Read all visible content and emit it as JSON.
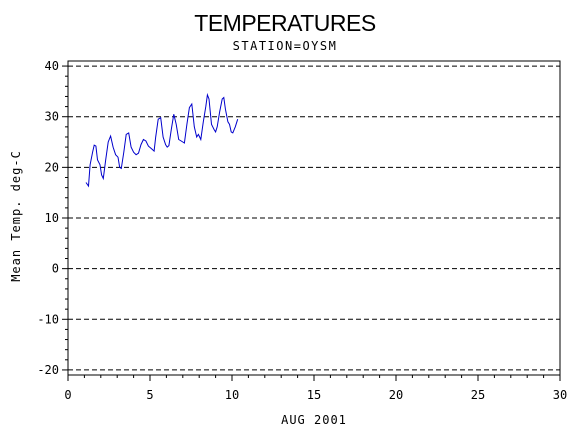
{
  "chart_data": {
    "type": "line",
    "title": "TEMPERATURES",
    "subtitle": "STATION=OYSM",
    "xlabel": "AUG 2001",
    "ylabel": "Mean Temp. deg-C",
    "xlim": [
      0,
      30
    ],
    "ylim": [
      -21,
      41
    ],
    "x_ticks": [
      0,
      5,
      10,
      15,
      20,
      25,
      30
    ],
    "x_tick_labels": [
      "0",
      "5",
      "10",
      "15",
      "20",
      "25",
      "30"
    ],
    "y_ticks": [
      -20,
      -10,
      0,
      10,
      20,
      30,
      40
    ],
    "y_tick_labels": [
      "-20",
      "-10",
      "0",
      "10",
      "20",
      "30",
      "40"
    ],
    "grid": "horizontal dashed at major y ticks",
    "line_color": "#0000cc",
    "series": [
      {
        "values": [
          [
            1.1,
            17.0
          ],
          [
            1.25,
            16.3
          ],
          [
            1.35,
            20.5
          ],
          [
            1.5,
            23.0
          ],
          [
            1.6,
            24.4
          ],
          [
            1.7,
            24.2
          ],
          [
            1.8,
            21.5
          ],
          [
            1.95,
            20.5
          ],
          [
            2.05,
            18.5
          ],
          [
            2.15,
            17.8
          ],
          [
            2.3,
            21.5
          ],
          [
            2.45,
            25.0
          ],
          [
            2.6,
            26.2
          ],
          [
            2.75,
            24.0
          ],
          [
            2.9,
            22.5
          ],
          [
            3.05,
            22.0
          ],
          [
            3.15,
            20.0
          ],
          [
            3.25,
            19.8
          ],
          [
            3.4,
            23.0
          ],
          [
            3.55,
            26.5
          ],
          [
            3.7,
            26.8
          ],
          [
            3.85,
            24.0
          ],
          [
            4.0,
            23.0
          ],
          [
            4.15,
            22.5
          ],
          [
            4.3,
            22.8
          ],
          [
            4.45,
            24.5
          ],
          [
            4.6,
            25.5
          ],
          [
            4.75,
            25.2
          ],
          [
            4.9,
            24.2
          ],
          [
            5.05,
            23.8
          ],
          [
            5.15,
            23.5
          ],
          [
            5.25,
            23.2
          ],
          [
            5.35,
            26.0
          ],
          [
            5.5,
            29.5
          ],
          [
            5.65,
            29.8
          ],
          [
            5.8,
            26.0
          ],
          [
            5.95,
            24.5
          ],
          [
            6.05,
            24.0
          ],
          [
            6.15,
            24.3
          ],
          [
            6.3,
            27.5
          ],
          [
            6.45,
            30.5
          ],
          [
            6.6,
            28.5
          ],
          [
            6.75,
            25.5
          ],
          [
            6.9,
            25.2
          ],
          [
            7.0,
            25.0
          ],
          [
            7.1,
            24.8
          ],
          [
            7.25,
            28.5
          ],
          [
            7.4,
            31.8
          ],
          [
            7.55,
            32.5
          ],
          [
            7.7,
            28.0
          ],
          [
            7.85,
            26.0
          ],
          [
            7.95,
            26.5
          ],
          [
            8.1,
            25.5
          ],
          [
            8.25,
            29.0
          ],
          [
            8.4,
            32.0
          ],
          [
            8.5,
            34.3
          ],
          [
            8.6,
            33.5
          ],
          [
            8.75,
            28.5
          ],
          [
            8.9,
            27.5
          ],
          [
            9.0,
            27.0
          ],
          [
            9.1,
            28.0
          ],
          [
            9.25,
            31.0
          ],
          [
            9.4,
            33.5
          ],
          [
            9.5,
            33.8
          ],
          [
            9.6,
            31.5
          ],
          [
            9.75,
            29.0
          ],
          [
            9.85,
            28.5
          ],
          [
            9.95,
            27.0
          ],
          [
            10.05,
            26.8
          ],
          [
            10.2,
            28.0
          ],
          [
            10.35,
            29.5
          ]
        ]
      }
    ]
  }
}
